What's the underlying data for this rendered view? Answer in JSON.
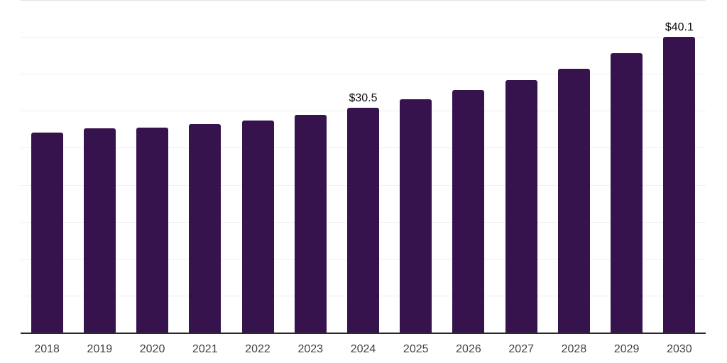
{
  "chart_data": {
    "type": "bar",
    "title": "",
    "categories": [
      "2018",
      "2019",
      "2020",
      "2021",
      "2022",
      "2023",
      "2024",
      "2025",
      "2026",
      "2027",
      "2028",
      "2029",
      "2030"
    ],
    "values": [
      27.2,
      27.7,
      27.8,
      28.3,
      28.8,
      29.6,
      30.5,
      31.7,
      32.9,
      34.3,
      35.8,
      37.9,
      40.1
    ],
    "value_labels": [
      null,
      null,
      null,
      null,
      null,
      null,
      "$30.5",
      null,
      null,
      null,
      null,
      null,
      "$40.1"
    ],
    "xlabel": "",
    "ylabel": "",
    "ylim": [
      0,
      45
    ],
    "gridline_step": 5,
    "grid": true,
    "y_axis_tick_labels_visible": false,
    "legend": "none",
    "colors": {
      "bar": "#36134d",
      "gridline": "#efefef",
      "gridline_top": "#e3e3e3",
      "axis_line": "#2b2b2b",
      "value_label": "#0d0d0d",
      "tick_label": "#424242",
      "background": "#ffffff"
    }
  }
}
